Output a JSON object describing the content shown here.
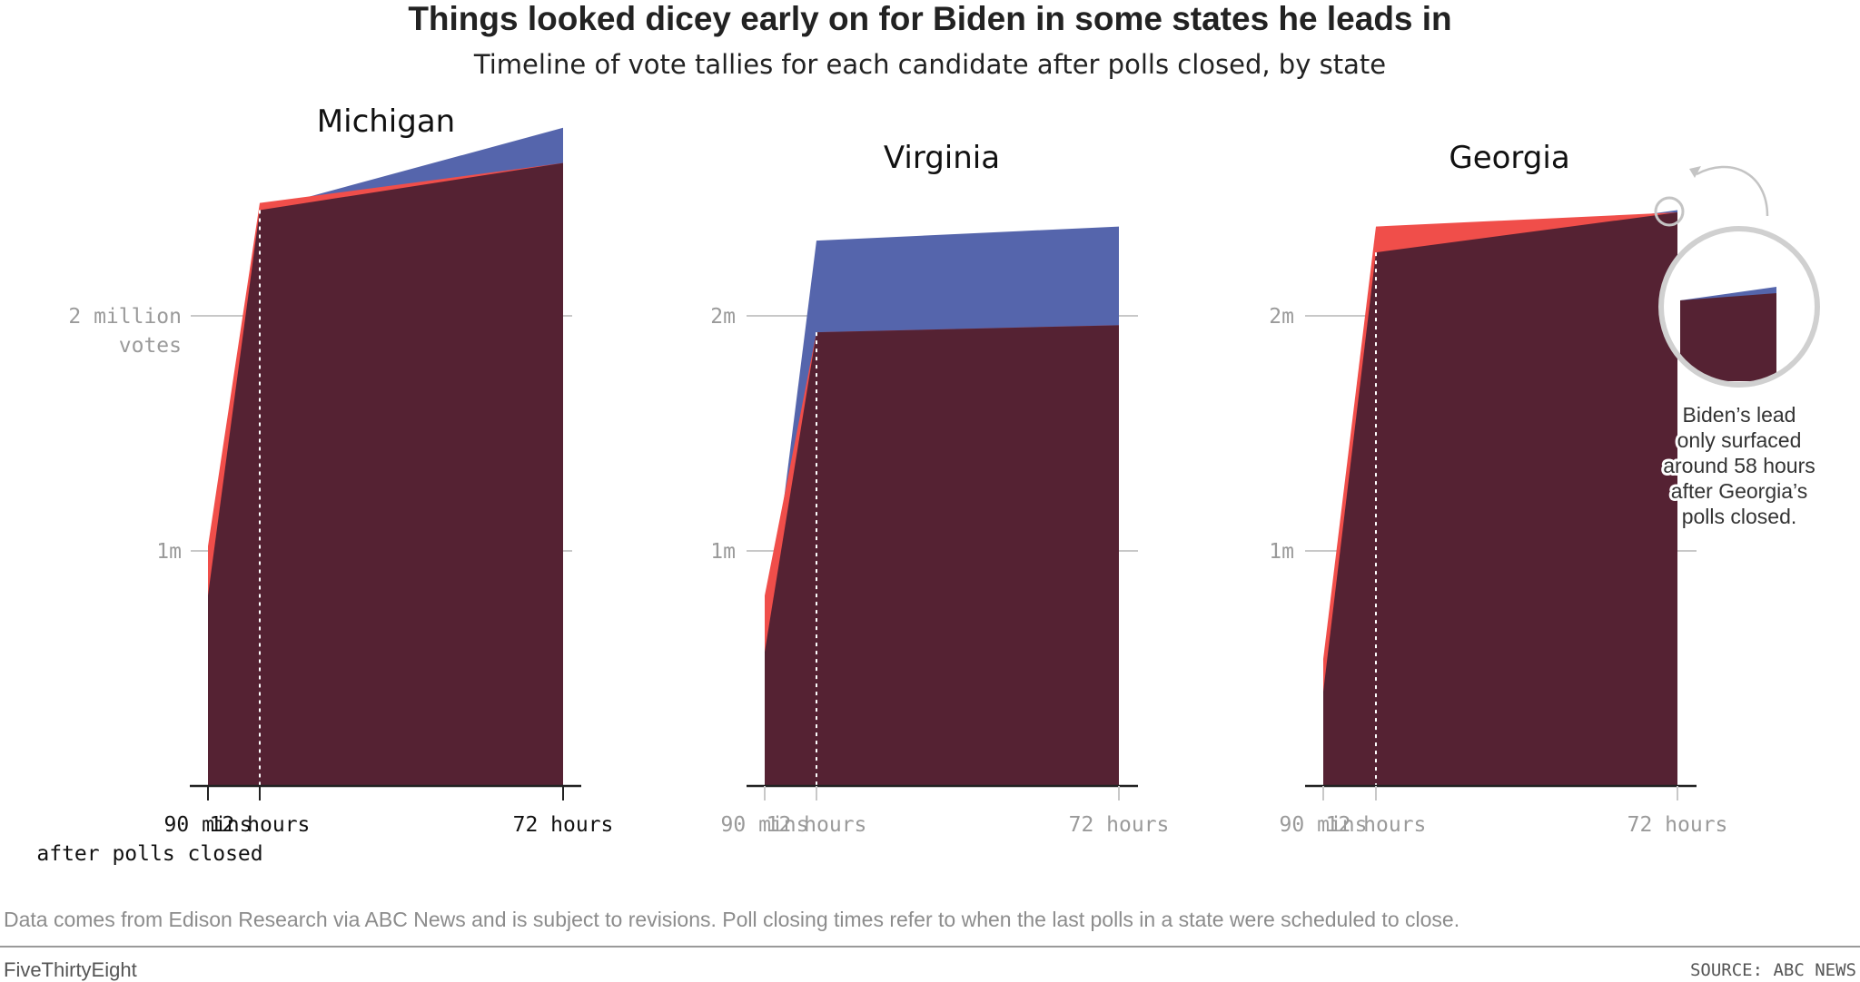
{
  "title": "Things looked dicey early on for Biden in some states he leads in",
  "subtitle": "Timeline of vote tallies for each candidate after polls closed, by state",
  "footnote": "Data comes from Edison Research via ABC News and is subject to revisions. Poll closing times refer to when the last polls in a state were scheduled to close.",
  "brand": "FiveThirtyEight",
  "source": "SOURCE: ABC NEWS",
  "colors": {
    "biden": "#5565ac",
    "trump": "#f04e4a",
    "overlap": "#552233",
    "axis": "#222222",
    "grid": "#c8c8c8",
    "label_dark": "#111111",
    "label_muted": "#9a9a9a"
  },
  "callout": {
    "lines": [
      "Biden’s lead",
      "only surfaced",
      "around 58 hours",
      "after Georgia’s",
      "polls closed."
    ]
  },
  "chart_data": [
    {
      "type": "area",
      "title": "Michigan",
      "x_tick_labels": [
        "90 mins",
        "12 hours",
        "72 hours"
      ],
      "x_tick_sublabel": "after polls closed",
      "y_tick_labels": [
        "2 million",
        "votes",
        "1m"
      ],
      "ylim": [
        0,
        3000000
      ],
      "series": [
        {
          "values": [
            [
              1.5,
              810000
            ],
            [
              12,
              2450000
            ],
            [
              72,
              2800000
            ]
          ]
        },
        {
          "values": [
            [
              1.5,
              1020000
            ],
            [
              12,
              2480000
            ],
            [
              72,
              2650000
            ]
          ]
        }
      ]
    },
    {
      "type": "area",
      "title": "Virginia",
      "x_tick_labels": [
        "90 mins",
        "12 hours",
        "72 hours"
      ],
      "y_tick_labels": [
        "2m",
        "1m"
      ],
      "ylim": [
        0,
        3000000
      ],
      "series": [
        {
          "values": [
            [
              1.5,
              570000
            ],
            [
              12,
              2320000
            ],
            [
              72,
              2380000
            ]
          ]
        },
        {
          "values": [
            [
              1.5,
              810000
            ],
            [
              12,
              1930000
            ],
            [
              72,
              1960000
            ]
          ]
        }
      ]
    },
    {
      "type": "area",
      "title": "Georgia",
      "x_tick_labels": [
        "90 mins",
        "12 hours",
        "72 hours"
      ],
      "y_tick_labels": [
        "2m",
        "1m"
      ],
      "ylim": [
        0,
        3000000
      ],
      "series": [
        {
          "values": [
            [
              1.5,
              400000
            ],
            [
              12,
              2270000
            ],
            [
              72,
              2450000
            ]
          ]
        },
        {
          "values": [
            [
              1.5,
              540000
            ],
            [
              12,
              2380000
            ],
            [
              72,
              2440000
            ]
          ]
        }
      ]
    }
  ]
}
